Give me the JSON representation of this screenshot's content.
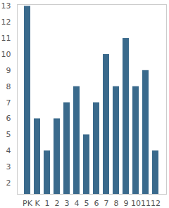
{
  "chart_data": {
    "type": "bar",
    "categories": [
      "PK",
      "K",
      "1",
      "2",
      "3",
      "4",
      "5",
      "6",
      "7",
      "8",
      "9",
      "10",
      "11",
      "12"
    ],
    "values": [
      13,
      6,
      4,
      6,
      7,
      8,
      5,
      7,
      10,
      8,
      11,
      8,
      9,
      4
    ],
    "color": "#3a6a8c",
    "ylim": [
      1.3,
      13.1
    ],
    "yticks": [
      2,
      3,
      4,
      5,
      6,
      7,
      8,
      9,
      10,
      11,
      12,
      13
    ],
    "grid": false
  }
}
